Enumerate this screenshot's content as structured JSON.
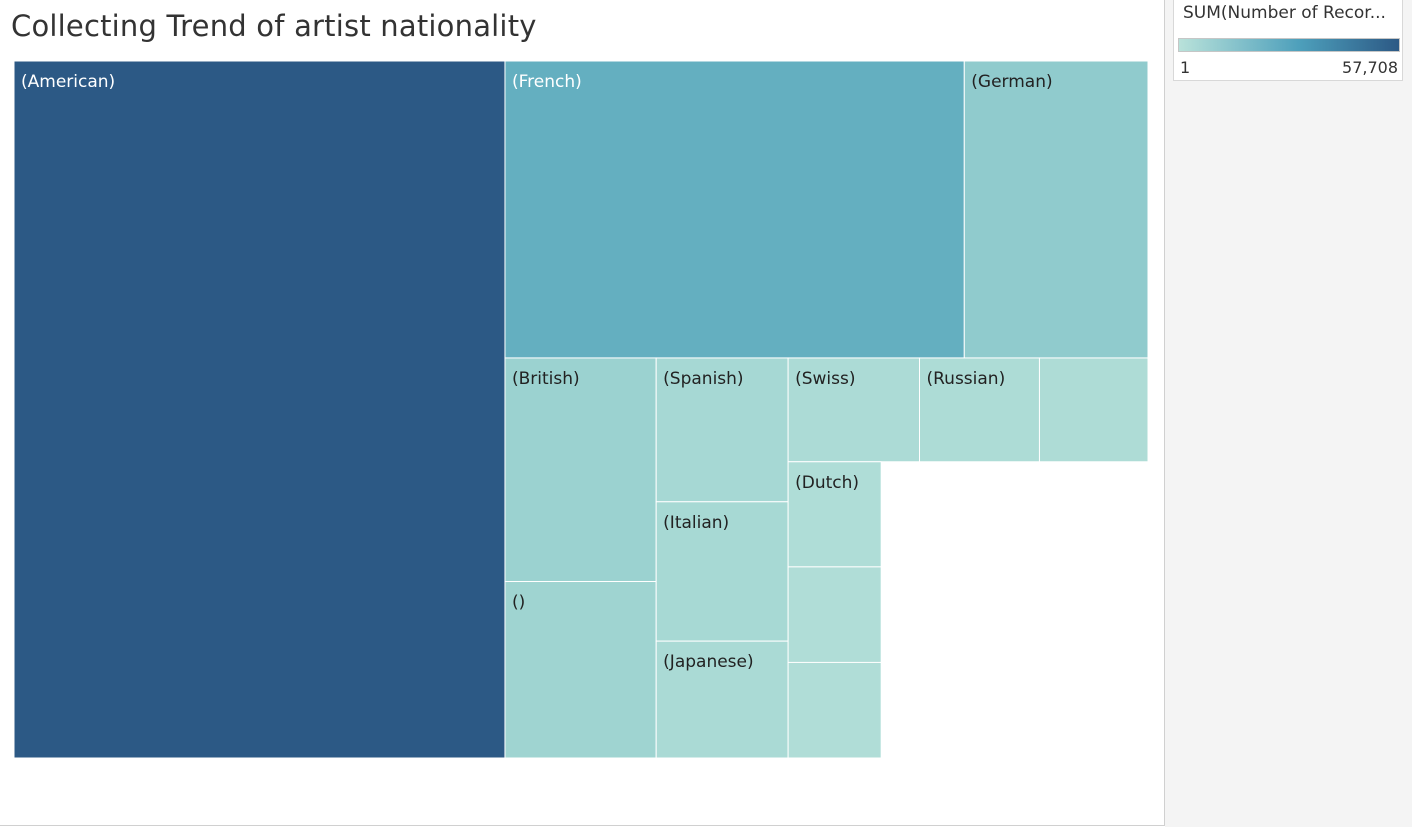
{
  "title": "Collecting Trend of artist nationality",
  "legend": {
    "title": "SUM(Number of Recor...",
    "min_label": "1",
    "max_label": "57,708",
    "min_value": 1,
    "max_value": 57708,
    "color_low": "#b9e2da",
    "color_mid": "#4d9fbb",
    "color_high": "#2c5985"
  },
  "chart_data": {
    "type": "treemap",
    "title": "Collecting Trend of artist nationality",
    "size_measure": "SUM(Number of Records)",
    "color_measure": "SUM(Number of Records)",
    "color_range": [
      1,
      57708
    ],
    "nodes": [
      {
        "label": "(American)",
        "value": 57708
      },
      {
        "label": "(French)",
        "value": 23000
      },
      {
        "label": "(German)",
        "value": 9200
      },
      {
        "label": "(British)",
        "value": 5700
      },
      {
        "label": "()",
        "value": 4500
      },
      {
        "label": "(Spanish)",
        "value": 3200
      },
      {
        "label": "",
        "value": 1900
      },
      {
        "label": "(Dutch)",
        "value": 1650
      },
      {
        "label": "",
        "value": 1500
      },
      {
        "label": "",
        "value": 1500
      },
      {
        "label": "(Italian)",
        "value": 3100
      },
      {
        "label": "(Japanese)",
        "value": 2600
      },
      {
        "label": "(Swiss)",
        "value": 2300
      },
      {
        "label": "(Russian)",
        "value": 2100
      }
    ]
  }
}
